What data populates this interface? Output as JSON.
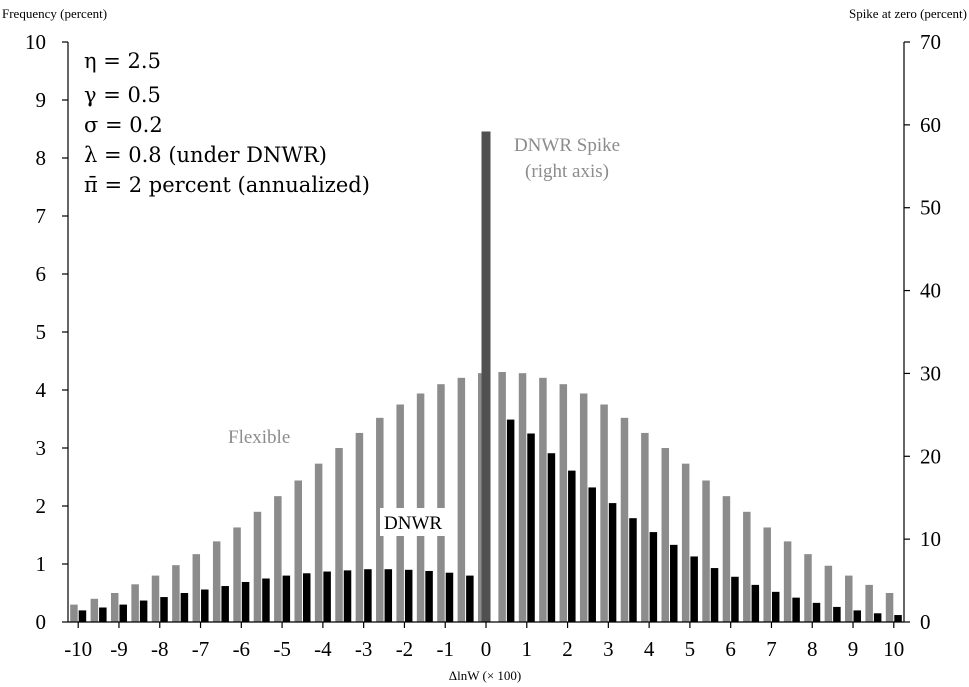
{
  "chart_data": {
    "type": "bar",
    "y_left_label": "Frequency (percent)",
    "y_right_label": "Spike at zero (percent)",
    "x_label": "ΔlnW (× 100)",
    "xlim": [
      -10.25,
      10.25
    ],
    "ylim_left": [
      0,
      10
    ],
    "ylim_right": [
      0,
      70
    ],
    "x_ticks": [
      "-10",
      "-9",
      "-8",
      "-7",
      "-6",
      "-5",
      "-4",
      "-3",
      "-2",
      "-1",
      "0",
      "1",
      "2",
      "3",
      "4",
      "5",
      "6",
      "7",
      "8",
      "9",
      "10"
    ],
    "y_left_ticks": [
      "0",
      "1",
      "2",
      "3",
      "4",
      "5",
      "6",
      "7",
      "8",
      "9",
      "10"
    ],
    "y_right_ticks": [
      "0",
      "10",
      "20",
      "30",
      "40",
      "50",
      "60",
      "70"
    ],
    "parameters": [
      "η = 2.5",
      "γ = 0.5",
      "σ = 0.2",
      "λ = 0.8 (under DNWR)",
      "π̄ = 2 percent (annualized)"
    ],
    "series": [
      {
        "name": "Flexible",
        "color": "#8c8c8c",
        "x": [
          -10,
          -9.5,
          -9,
          -8.5,
          -8,
          -7.5,
          -7,
          -6.5,
          -6,
          -5.5,
          -5,
          -4.5,
          -4,
          -3.5,
          -3,
          -2.5,
          -2,
          -1.5,
          -1,
          -0.5,
          0,
          0.5,
          1,
          1.5,
          2,
          2.5,
          3,
          3.5,
          4,
          4.5,
          5,
          5.5,
          6,
          6.5,
          7,
          7.5,
          8,
          8.5,
          9,
          9.5,
          10
        ],
        "values": [
          0.3,
          0.4,
          0.5,
          0.65,
          0.8,
          0.98,
          1.17,
          1.39,
          1.63,
          1.9,
          2.17,
          2.44,
          2.73,
          3.0,
          3.26,
          3.52,
          3.75,
          3.94,
          4.1,
          4.21,
          4.29,
          4.31,
          4.29,
          4.21,
          4.1,
          3.94,
          3.75,
          3.52,
          3.26,
          3.0,
          2.73,
          2.44,
          2.17,
          1.9,
          1.63,
          1.39,
          1.17,
          0.97,
          0.8,
          0.64,
          0.5
        ]
      },
      {
        "name": "DNWR",
        "color": "#000000",
        "x": [
          -10,
          -9.5,
          -9,
          -8.5,
          -8,
          -7.5,
          -7,
          -6.5,
          -6,
          -5.5,
          -5,
          -4.5,
          -4,
          -3.5,
          -3,
          -2.5,
          -2,
          -1.5,
          -1,
          -0.5,
          0.5,
          1,
          1.5,
          2,
          2.5,
          3,
          3.5,
          4,
          4.5,
          5,
          5.5,
          6,
          6.5,
          7,
          7.5,
          8,
          8.5,
          9,
          9.5,
          10
        ],
        "values": [
          0.2,
          0.25,
          0.3,
          0.37,
          0.43,
          0.5,
          0.56,
          0.62,
          0.69,
          0.75,
          0.8,
          0.84,
          0.87,
          0.89,
          0.91,
          0.91,
          0.9,
          0.88,
          0.85,
          0.8,
          3.49,
          3.25,
          2.91,
          2.61,
          2.32,
          2.05,
          1.79,
          1.55,
          1.33,
          1.13,
          0.93,
          0.78,
          0.64,
          0.52,
          0.42,
          0.33,
          0.26,
          0.2,
          0.15,
          0.12
        ]
      },
      {
        "name": "DNWR Spike",
        "axis": "right",
        "color": "#505050",
        "x": [
          0
        ],
        "values": [
          59.2
        ]
      }
    ],
    "annotations": {
      "flexible": "Flexible",
      "dnwr": "DNWR",
      "spike_line1": "DNWR Spike",
      "spike_line2": "(right axis)"
    }
  }
}
